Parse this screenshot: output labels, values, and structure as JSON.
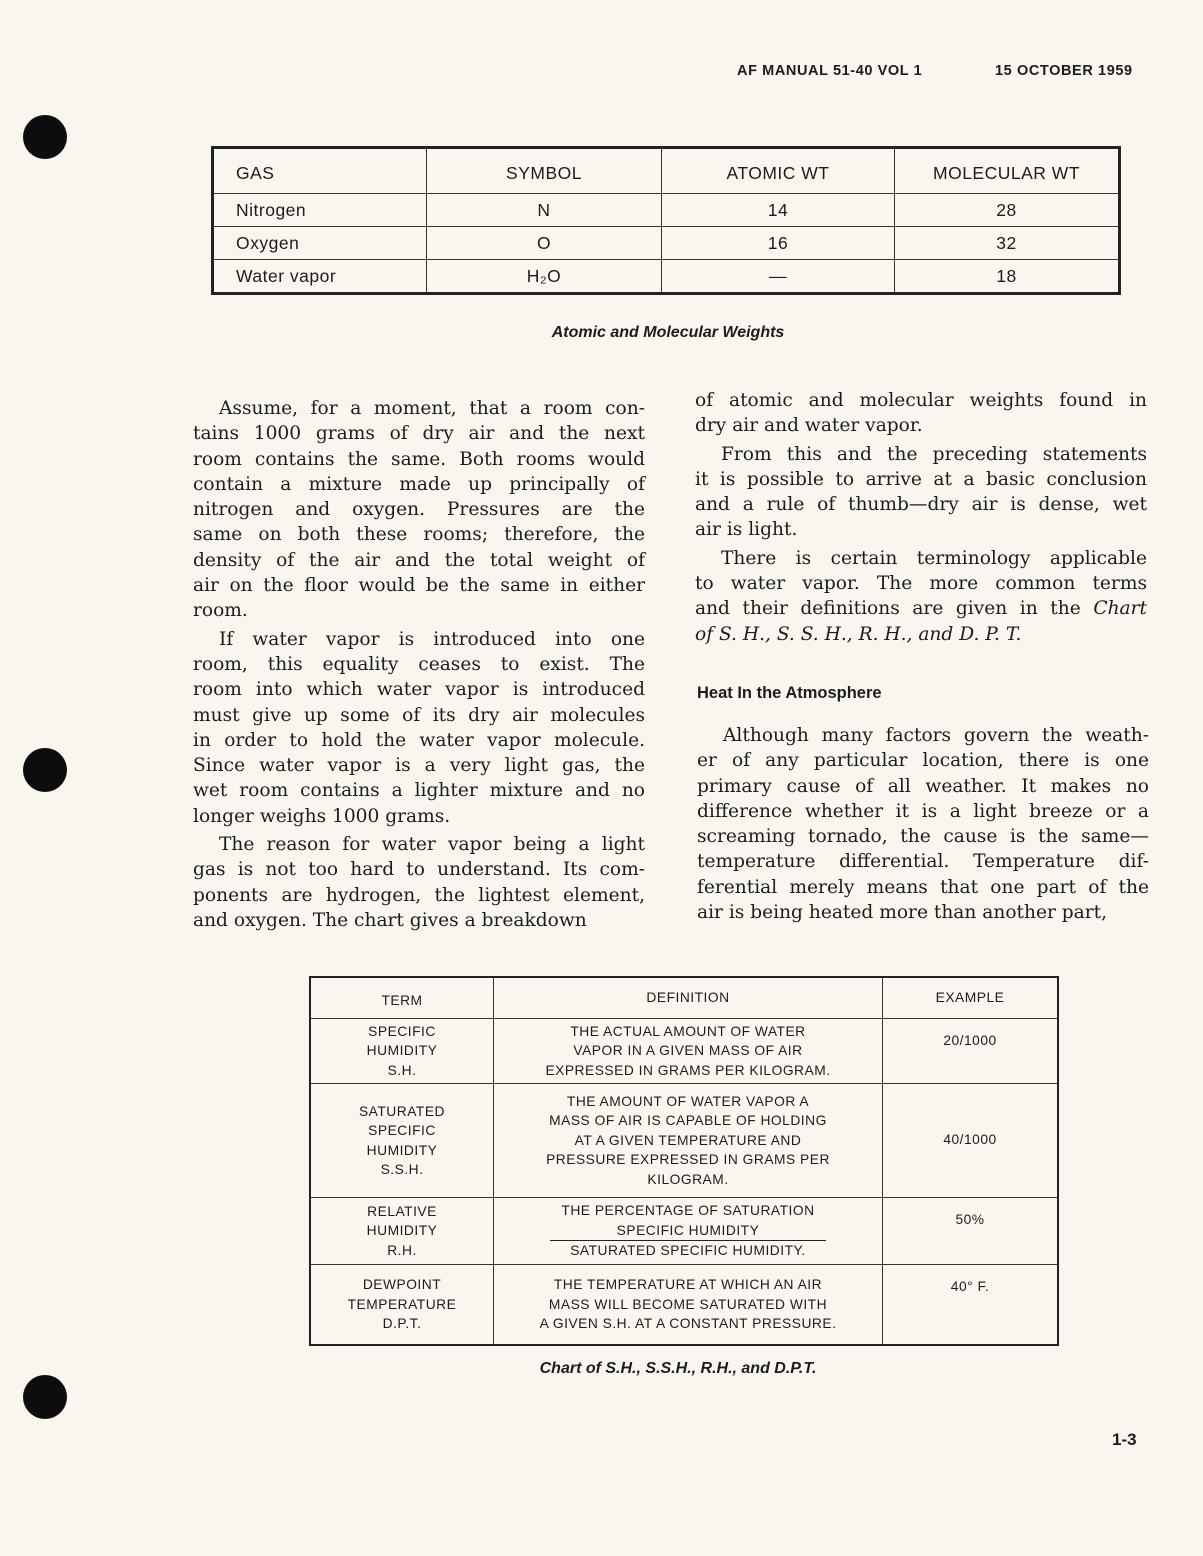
{
  "header": {
    "manual": "AF MANUAL 51-40 VOL 1",
    "date": "15 OCTOBER 1959"
  },
  "weights_table": {
    "headers": [
      "GAS",
      "SYMBOL",
      "ATOMIC WT",
      "MOLECULAR WT"
    ],
    "rows": [
      [
        "Nitrogen",
        "N",
        "14",
        "28"
      ],
      [
        "Oxygen",
        "O",
        "16",
        "32"
      ],
      [
        "Water vapor",
        "H₂O",
        "—",
        "18"
      ]
    ],
    "caption": "Atomic and Molecular Weights"
  },
  "left_column": [
    {
      "lines": [
        {
          "t": "Assume, for a moment, that a room con-"
        },
        {
          "t": "tains 1000 grams of dry air and the next"
        },
        {
          "t": "room contains the same. Both rooms would"
        },
        {
          "t": "contain a mixture made up principally of"
        },
        {
          "t": "nitrogen and oxygen. Pressures are the"
        },
        {
          "t": "same on both these rooms; therefore, the"
        },
        {
          "t": "density of the air and the total weight of"
        },
        {
          "t": "air on the floor would be the same in either"
        },
        {
          "t": "room."
        }
      ]
    },
    {
      "lines": [
        {
          "t": "If water vapor is introduced into one"
        },
        {
          "t": "room, this equality ceases to exist. The"
        },
        {
          "t": "room into which water vapor is introduced"
        },
        {
          "t": "must give up some of its dry air molecules"
        },
        {
          "t": "in order to hold the water vapor molecule."
        },
        {
          "t": "Since water vapor is a very light gas, the"
        },
        {
          "t": "wet room contains a lighter mixture and no"
        },
        {
          "t": "longer weighs 1000 grams."
        }
      ]
    },
    {
      "lines": [
        {
          "t": "The reason for water vapor being a light"
        },
        {
          "t": "gas is not too hard to understand. Its com-"
        },
        {
          "t": "ponents are hydrogen, the lightest element,"
        },
        {
          "t": "and oxygen. The chart gives a breakdown"
        }
      ]
    }
  ],
  "right_column": [
    {
      "lines": [
        {
          "t": "of atomic and molecular weights found in"
        },
        {
          "t": "dry air and water vapor."
        }
      ]
    },
    {
      "lines": [
        {
          "t": "From this and the preceding statements"
        },
        {
          "t": "it is possible to arrive at a basic conclusion"
        },
        {
          "t": "and a rule of thumb—dry air is dense, wet"
        },
        {
          "t": "air is light."
        }
      ]
    },
    {
      "lines": [
        {
          "t": "There is certain terminology applicable"
        },
        {
          "t": "to water vapor. The more common terms"
        },
        {
          "t": "and their definitions are given in the ",
          "i": "Chart"
        },
        {
          "t": "",
          "i": "of S. H., S. S. H., R. H., and D. P. T."
        }
      ]
    }
  ],
  "heat_section": {
    "heading": "Heat In the Atmosphere",
    "lines": [
      {
        "t": "Although many factors govern the weath-"
      },
      {
        "t": "er of any particular location, there is one"
      },
      {
        "t": "primary cause of all weather. It makes no"
      },
      {
        "t": "difference whether it is a light breeze or a"
      },
      {
        "t": "screaming tornado, the cause is the same—"
      },
      {
        "t": "temperature differential. Temperature dif-"
      },
      {
        "t": "ferential merely means that one part of the"
      },
      {
        "t": "air is being heated more than another part,"
      }
    ]
  },
  "terms_table": {
    "headers": [
      "TERM",
      "DEFINITION",
      "EXAMPLE"
    ],
    "rows": [
      {
        "term": [
          "SPECIFIC",
          "HUMIDITY",
          "S.H."
        ],
        "definition": [
          "THE ACTUAL AMOUNT OF WATER",
          "VAPOR IN A GIVEN MASS OF AIR",
          "EXPRESSED IN GRAMS PER KILOGRAM."
        ],
        "example": "20/1000"
      },
      {
        "term": [
          "SATURATED",
          "SPECIFIC",
          "HUMIDITY",
          "S.S.H."
        ],
        "definition": [
          "THE AMOUNT OF WATER VAPOR A",
          "MASS OF AIR IS CAPABLE OF HOLDING",
          "AT A GIVEN TEMPERATURE AND",
          "PRESSURE EXPRESSED IN GRAMS PER",
          "KILOGRAM."
        ],
        "example": "40/1000"
      },
      {
        "term": [
          "RELATIVE",
          "HUMIDITY",
          "R.H."
        ],
        "definition_intro": "THE PERCENTAGE OF SATURATION",
        "numerator": "SPECIFIC HUMIDITY",
        "denominator": "SATURATED SPECIFIC HUMIDITY.",
        "example": "50%"
      },
      {
        "term": [
          "DEWPOINT",
          "TEMPERATURE",
          "D.P.T."
        ],
        "definition": [
          "THE TEMPERATURE AT WHICH AN AIR",
          "MASS WILL BECOME SATURATED WITH",
          "A GIVEN S.H. AT A CONSTANT PRESSURE."
        ],
        "example": "40° F."
      }
    ],
    "caption": "Chart of S.H., S.S.H., R.H., and D.P.T."
  },
  "page_number": "1-3"
}
